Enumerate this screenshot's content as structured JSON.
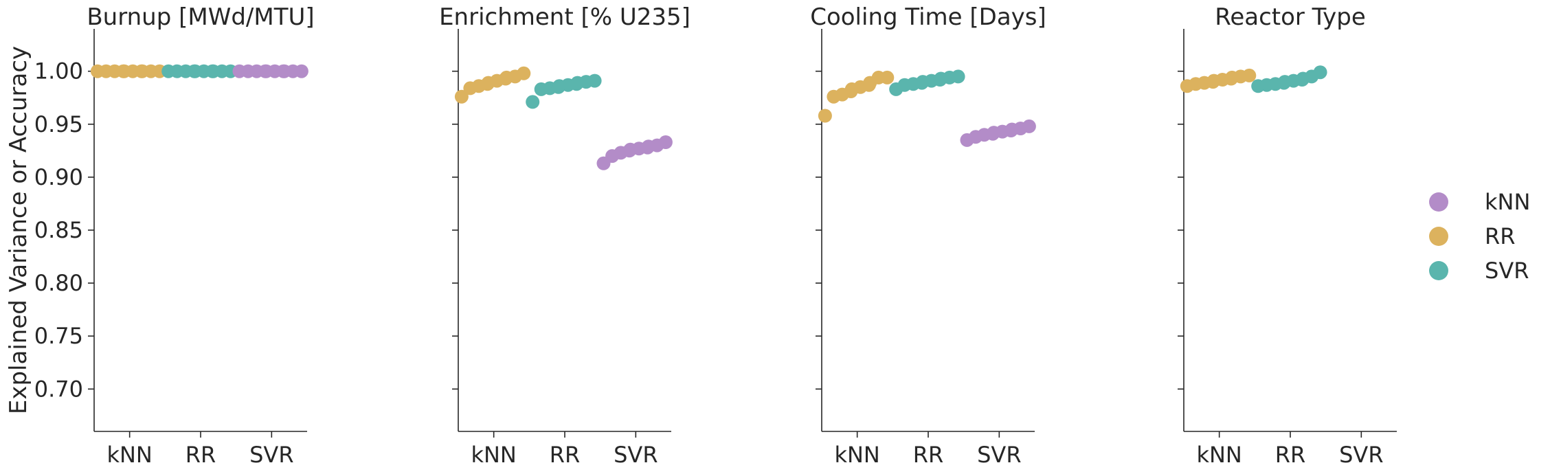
{
  "chart_data": {
    "type": "scatter",
    "subtype": "swarm",
    "ylabel": "Explained Variance or Accuracy",
    "ylim": [
      0.66,
      1.04
    ],
    "yticks": [
      "0.70",
      "0.75",
      "0.80",
      "0.85",
      "0.90",
      "0.95",
      "1.00"
    ],
    "categories": [
      "kNN",
      "RR",
      "SVR"
    ],
    "legend": {
      "placement": "right",
      "entries": [
        {
          "name": "kNN",
          "color": "#b38cc8"
        },
        {
          "name": "RR",
          "color": "#dcb25e"
        },
        {
          "name": "SVR",
          "color": "#5ab5ad"
        }
      ]
    },
    "panels": [
      {
        "title": "Burnup [MWd/MTU]",
        "series": [
          {
            "name": "RR",
            "category": "kNN",
            "color": "#dcb25e",
            "values": [
              1.0,
              1.0,
              1.0,
              1.0,
              1.0,
              1.0,
              1.0,
              1.0,
              1.0,
              1.0
            ]
          },
          {
            "name": "SVR",
            "category": "RR",
            "color": "#5ab5ad",
            "values": [
              1.0,
              1.0,
              1.0,
              1.0,
              1.0,
              1.0,
              1.0,
              1.0,
              1.0,
              1.0
            ]
          },
          {
            "name": "kNN",
            "category": "SVR",
            "color": "#b38cc8",
            "values": [
              1.0,
              1.0,
              1.0,
              1.0,
              1.0,
              1.0,
              1.0,
              1.0,
              1.0,
              1.0
            ]
          }
        ]
      },
      {
        "title": "Enrichment [% U235]",
        "series": [
          {
            "name": "RR",
            "category": "kNN",
            "color": "#dcb25e",
            "values": [
              0.976,
              0.984,
              0.986,
              0.988,
              0.989,
              0.991,
              0.993,
              0.994,
              0.995,
              0.998
            ]
          },
          {
            "name": "SVR",
            "category": "RR",
            "color": "#5ab5ad",
            "values": [
              0.971,
              0.983,
              0.984,
              0.985,
              0.986,
              0.987,
              0.988,
              0.989,
              0.99,
              0.991
            ]
          },
          {
            "name": "kNN",
            "category": "SVR",
            "color": "#b38cc8",
            "values": [
              0.913,
              0.92,
              0.923,
              0.925,
              0.926,
              0.927,
              0.928,
              0.929,
              0.93,
              0.933
            ]
          }
        ]
      },
      {
        "title": "Cooling Time [Days]",
        "series": [
          {
            "name": "RR",
            "category": "kNN",
            "color": "#dcb25e",
            "values": [
              0.958,
              0.976,
              0.978,
              0.981,
              0.983,
              0.985,
              0.987,
              0.989,
              0.994,
              0.994
            ]
          },
          {
            "name": "SVR",
            "category": "RR",
            "color": "#5ab5ad",
            "values": [
              0.983,
              0.987,
              0.988,
              0.989,
              0.99,
              0.991,
              0.992,
              0.993,
              0.994,
              0.995
            ]
          },
          {
            "name": "kNN",
            "category": "SVR",
            "color": "#b38cc8",
            "values": [
              0.935,
              0.938,
              0.94,
              0.941,
              0.942,
              0.943,
              0.944,
              0.945,
              0.946,
              0.948
            ]
          }
        ]
      },
      {
        "title": "Reactor Type",
        "series": [
          {
            "name": "RR",
            "category": "kNN",
            "color": "#dcb25e",
            "values": [
              0.986,
              0.988,
              0.989,
              0.99,
              0.991,
              0.992,
              0.993,
              0.994,
              0.995,
              0.996
            ]
          },
          {
            "name": "SVR",
            "category": "RR",
            "color": "#5ab5ad",
            "values": [
              0.986,
              0.987,
              0.988,
              0.989,
              0.99,
              0.991,
              0.992,
              0.993,
              0.995,
              0.999
            ]
          }
        ]
      }
    ]
  }
}
